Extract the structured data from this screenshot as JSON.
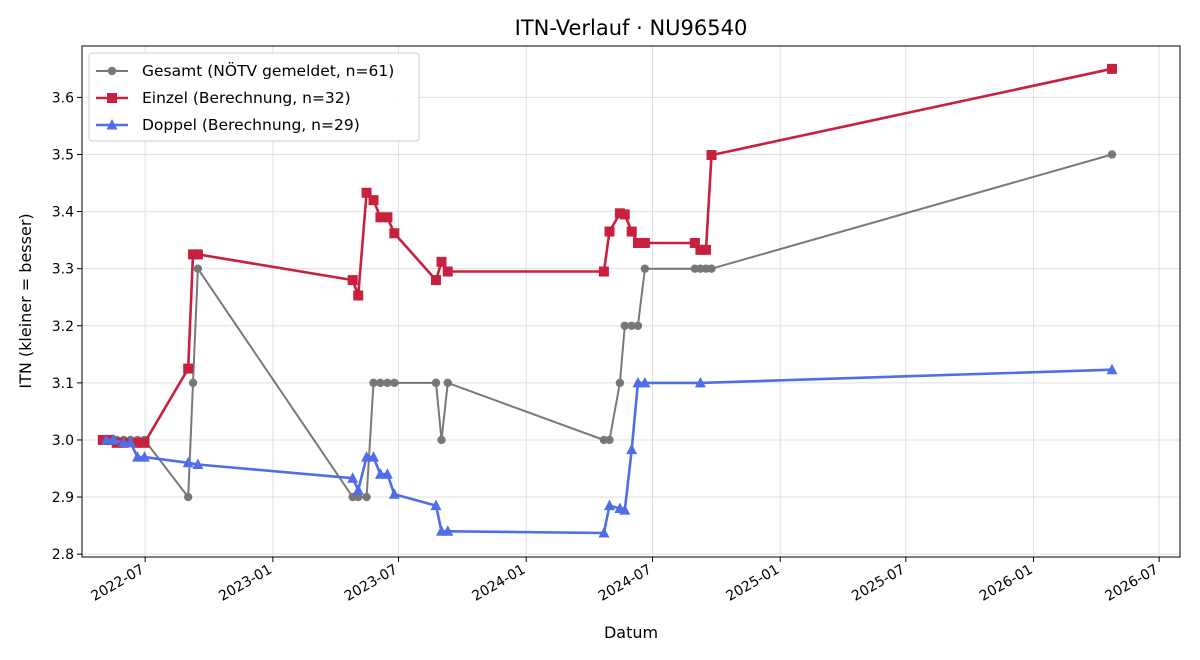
{
  "chart_data": {
    "type": "line",
    "title": "ITN-Verlauf · NU96540",
    "xlabel": "Datum",
    "ylabel": "ITN  (kleiner = besser)",
    "x_ticks": [
      "2022-07",
      "2023-01",
      "2023-07",
      "2024-01",
      "2024-07",
      "2025-01",
      "2025-07",
      "2026-01",
      "2026-07"
    ],
    "y_ticks": [
      "2.8",
      "2.9",
      "3.0",
      "3.1",
      "3.2",
      "3.3",
      "3.4",
      "3.5",
      "3.6"
    ],
    "xlim": [
      "2022-04-01",
      "2026-07-31"
    ],
    "ylim": [
      2.795,
      3.69
    ],
    "grid": true,
    "legend_position": "top-left",
    "series": [
      {
        "name": "Gesamt (NÖTV gemeldet, n=61)",
        "color": "#4d4d4d",
        "marker": "circle",
        "points": [
          [
            "2022-05-01",
            3.0
          ],
          [
            "2022-05-06",
            3.0
          ],
          [
            "2022-05-11",
            3.0
          ],
          [
            "2022-05-16",
            3.0
          ],
          [
            "2022-05-21",
            3.0
          ],
          [
            "2022-05-31",
            3.0
          ],
          [
            "2022-06-10",
            3.0
          ],
          [
            "2022-06-20",
            3.0
          ],
          [
            "2022-06-30",
            3.0
          ],
          [
            "2022-09-01",
            2.9
          ],
          [
            "2022-09-08",
            3.1
          ],
          [
            "2022-09-15",
            3.3
          ],
          [
            "2023-04-26",
            2.9
          ],
          [
            "2023-05-04",
            2.9
          ],
          [
            "2023-05-16",
            2.9
          ],
          [
            "2023-05-26",
            3.1
          ],
          [
            "2023-06-05",
            3.1
          ],
          [
            "2023-06-15",
            3.1
          ],
          [
            "2023-06-25",
            3.1
          ],
          [
            "2023-08-24",
            3.1
          ],
          [
            "2023-09-01",
            3.0
          ],
          [
            "2023-09-10",
            3.1
          ],
          [
            "2024-04-22",
            3.0
          ],
          [
            "2024-04-30",
            3.0
          ],
          [
            "2024-05-15",
            3.1
          ],
          [
            "2024-05-22",
            3.2
          ],
          [
            "2024-06-01",
            3.2
          ],
          [
            "2024-06-10",
            3.2
          ],
          [
            "2024-06-20",
            3.3
          ],
          [
            "2024-08-31",
            3.3
          ],
          [
            "2024-09-08",
            3.3
          ],
          [
            "2024-09-16",
            3.3
          ],
          [
            "2024-09-24",
            3.3
          ],
          [
            "2026-04-24",
            3.5
          ]
        ]
      },
      {
        "name": "Einzel (Berechnung, n=32)",
        "color": "#c8203f",
        "marker": "square",
        "points": [
          [
            "2022-05-01",
            3.0
          ],
          [
            "2022-05-11",
            3.0
          ],
          [
            "2022-05-21",
            2.995
          ],
          [
            "2022-05-31",
            2.995
          ],
          [
            "2022-06-20",
            2.995
          ],
          [
            "2022-06-30",
            2.995
          ],
          [
            "2022-09-01",
            3.125
          ],
          [
            "2022-09-08",
            3.325
          ],
          [
            "2022-09-15",
            3.325
          ],
          [
            "2023-04-26",
            3.28
          ],
          [
            "2023-05-04",
            3.253
          ],
          [
            "2023-05-16",
            3.433
          ],
          [
            "2023-05-26",
            3.42
          ],
          [
            "2023-06-05",
            3.39
          ],
          [
            "2023-06-15",
            3.39
          ],
          [
            "2023-06-25",
            3.362
          ],
          [
            "2023-08-24",
            3.28
          ],
          [
            "2023-09-01",
            3.312
          ],
          [
            "2023-09-10",
            3.295
          ],
          [
            "2024-04-22",
            3.295
          ],
          [
            "2024-04-30",
            3.365
          ],
          [
            "2024-05-15",
            3.397
          ],
          [
            "2024-05-22",
            3.395
          ],
          [
            "2024-06-01",
            3.365
          ],
          [
            "2024-06-10",
            3.345
          ],
          [
            "2024-06-20",
            3.345
          ],
          [
            "2024-08-31",
            3.345
          ],
          [
            "2024-09-08",
            3.333
          ],
          [
            "2024-09-16",
            3.333
          ],
          [
            "2024-09-24",
            3.499
          ],
          [
            "2026-04-24",
            3.65
          ]
        ]
      },
      {
        "name": "Doppel (Berechnung, n=29)",
        "color": "#4f6ee8",
        "marker": "triangle",
        "points": [
          [
            "2022-05-06",
            3.0
          ],
          [
            "2022-05-16",
            3.0
          ],
          [
            "2022-05-31",
            2.995
          ],
          [
            "2022-06-10",
            2.995
          ],
          [
            "2022-06-20",
            2.97
          ],
          [
            "2022-06-30",
            2.97
          ],
          [
            "2022-09-01",
            2.96
          ],
          [
            "2022-09-15",
            2.957
          ],
          [
            "2023-04-26",
            2.933
          ],
          [
            "2023-05-04",
            2.912
          ],
          [
            "2023-05-16",
            2.97
          ],
          [
            "2023-05-26",
            2.97
          ],
          [
            "2023-06-05",
            2.94
          ],
          [
            "2023-06-15",
            2.94
          ],
          [
            "2023-06-25",
            2.905
          ],
          [
            "2023-08-24",
            2.885
          ],
          [
            "2023-09-01",
            2.84
          ],
          [
            "2023-09-10",
            2.84
          ],
          [
            "2024-04-22",
            2.837
          ],
          [
            "2024-04-30",
            2.885
          ],
          [
            "2024-05-15",
            2.88
          ],
          [
            "2024-05-22",
            2.877
          ],
          [
            "2024-06-01",
            2.983
          ],
          [
            "2024-06-10",
            3.1
          ],
          [
            "2024-06-20",
            3.1
          ],
          [
            "2024-09-08",
            3.1
          ],
          [
            "2026-04-24",
            3.123
          ]
        ]
      }
    ]
  }
}
